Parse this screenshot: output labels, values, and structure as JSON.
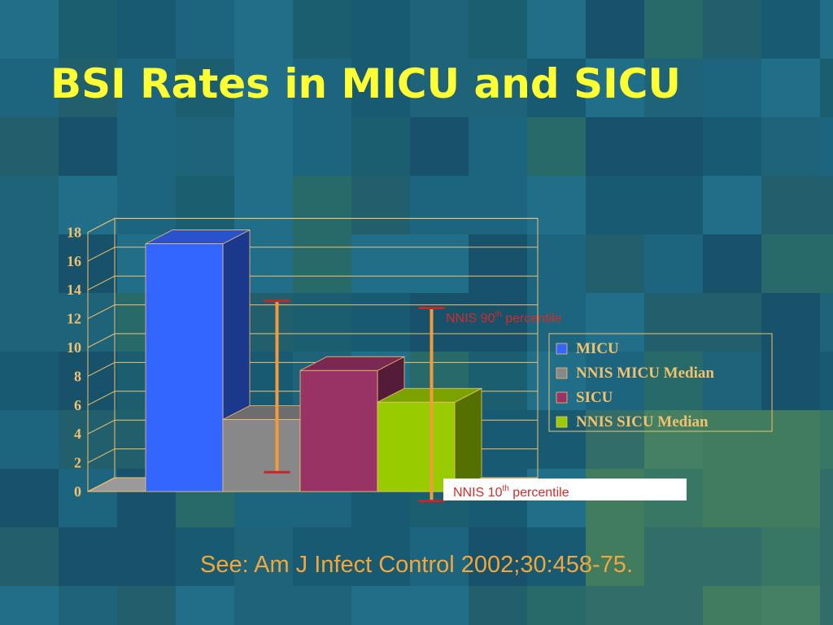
{
  "slide": {
    "title": "BSI Rates in MICU and SICU",
    "citation": "See: Am J Infect Control 2002;30:458-75."
  },
  "colors": {
    "background": "#1d5f78",
    "title": "#ffff33",
    "axis_text": "#f2c16e",
    "annotation": "#d42a2a",
    "citation": "#f2a63b",
    "error_bar": "#f29a3c"
  },
  "chart_data": {
    "type": "bar",
    "style": "3d-column",
    "categories": [
      "MICU",
      "NNIS MICU Median",
      "SICU",
      "NNIS SICU Median"
    ],
    "series": [
      {
        "name": "MICU",
        "value": 17.2,
        "color": "#3366ff"
      },
      {
        "name": "NNIS MICU Median",
        "value": 5.0,
        "color": "#888888"
      },
      {
        "name": "SICU",
        "value": 8.4,
        "color": "#993366"
      },
      {
        "name": "NNIS SICU Median",
        "value": 6.2,
        "color": "#99cc00"
      }
    ],
    "percentile_ranges": [
      {
        "series": "NNIS MICU Median",
        "p10": 1.4,
        "p90": 13.3
      },
      {
        "series": "NNIS SICU Median",
        "p10": -0.6,
        "p90": 12.8
      }
    ],
    "yticks": [
      0,
      2,
      4,
      6,
      8,
      10,
      12,
      14,
      16,
      18
    ],
    "ylim": [
      0,
      18
    ],
    "grid": true,
    "legend_position": "right",
    "annotations": {
      "p90": {
        "text": "NNIS 90",
        "sup": "th",
        "rest": " percentile"
      },
      "p10": {
        "text": "NNIS 10",
        "sup": "th",
        "rest": " percentile"
      }
    }
  }
}
